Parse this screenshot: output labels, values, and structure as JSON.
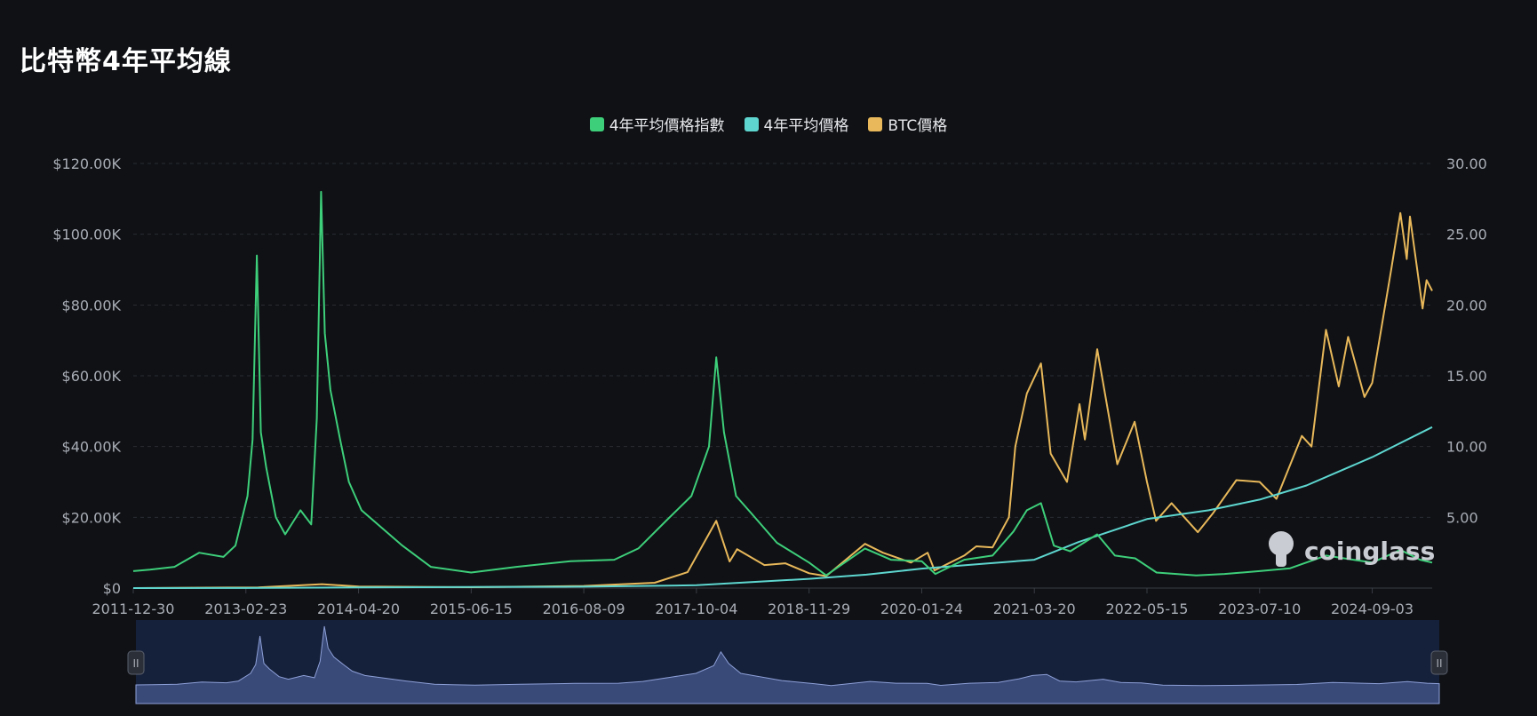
{
  "title": "比特幣4年平均線",
  "watermark": "coinglass",
  "colors": {
    "index": "#3ecf7a",
    "ma": "#5ed6cf",
    "btc": "#e8b85a",
    "grid": "#2a2d33",
    "navigator_fill": "#3a4a78",
    "navigator_bg": "#15203a"
  },
  "chart_data": {
    "type": "line",
    "title": "比特幣4年平均線",
    "x_ticks": [
      "2011-12-30",
      "2013-02-23",
      "2014-04-20",
      "2015-06-15",
      "2016-08-09",
      "2017-10-04",
      "2018-11-29",
      "2020-01-24",
      "2021-03-20",
      "2022-05-15",
      "2023-07-10",
      "2024-09-03"
    ],
    "x_range": [
      "2011-12-30",
      "2025-04-15"
    ],
    "y_left": {
      "ticks": [
        "$0",
        "$20.00K",
        "$40.00K",
        "$60.00K",
        "$80.00K",
        "$100.00K",
        "$120.00K"
      ],
      "range": [
        0,
        120000
      ]
    },
    "y_right": {
      "ticks": [
        "5.00",
        "10.00",
        "15.00",
        "20.00",
        "25.00",
        "30.00"
      ],
      "range": [
        0,
        30
      ]
    },
    "grid": true,
    "legend": "top-center",
    "series": [
      {
        "name": "4年平均價格指數",
        "axis": "right",
        "color_key": "index",
        "points": [
          [
            "2011-12-30",
            1.2
          ],
          [
            "2012-03-01",
            1.3
          ],
          [
            "2012-06-01",
            1.5
          ],
          [
            "2012-09-01",
            2.5
          ],
          [
            "2012-12-01",
            2.2
          ],
          [
            "2013-01-15",
            3.0
          ],
          [
            "2013-03-01",
            6.5
          ],
          [
            "2013-03-20",
            10.5
          ],
          [
            "2013-04-05",
            23.5
          ],
          [
            "2013-04-20",
            11.0
          ],
          [
            "2013-05-10",
            8.5
          ],
          [
            "2013-06-15",
            5.0
          ],
          [
            "2013-07-20",
            3.8
          ],
          [
            "2013-09-15",
            5.5
          ],
          [
            "2013-10-25",
            4.5
          ],
          [
            "2013-11-15",
            12.0
          ],
          [
            "2013-12-01",
            28.0
          ],
          [
            "2013-12-15",
            18.0
          ],
          [
            "2014-01-05",
            14.0
          ],
          [
            "2014-02-10",
            10.5
          ],
          [
            "2014-03-15",
            7.5
          ],
          [
            "2014-05-01",
            5.5
          ],
          [
            "2014-07-01",
            4.5
          ],
          [
            "2014-10-01",
            3.0
          ],
          [
            "2015-01-15",
            1.5
          ],
          [
            "2015-06-15",
            1.1
          ],
          [
            "2015-12-01",
            1.5
          ],
          [
            "2016-06-20",
            1.9
          ],
          [
            "2016-12-01",
            2.0
          ],
          [
            "2017-03-01",
            2.8
          ],
          [
            "2017-06-15",
            4.8
          ],
          [
            "2017-09-15",
            6.5
          ],
          [
            "2017-11-20",
            10.0
          ],
          [
            "2017-12-17",
            16.3
          ],
          [
            "2018-01-15",
            11.0
          ],
          [
            "2018-03-01",
            6.5
          ],
          [
            "2018-05-01",
            5.2
          ],
          [
            "2018-08-01",
            3.2
          ],
          [
            "2018-11-29",
            1.8
          ],
          [
            "2019-02-01",
            0.9
          ],
          [
            "2019-06-26",
            2.8
          ],
          [
            "2019-10-01",
            2.0
          ],
          [
            "2020-01-24",
            1.9
          ],
          [
            "2020-03-15",
            1.0
          ],
          [
            "2020-07-01",
            2.0
          ],
          [
            "2020-10-15",
            2.3
          ],
          [
            "2021-01-01",
            4.0
          ],
          [
            "2021-02-20",
            5.5
          ],
          [
            "2021-04-14",
            6.0
          ],
          [
            "2021-06-01",
            3.0
          ],
          [
            "2021-08-01",
            2.6
          ],
          [
            "2021-11-10",
            3.8
          ],
          [
            "2022-01-15",
            2.3
          ],
          [
            "2022-04-01",
            2.1
          ],
          [
            "2022-06-20",
            1.1
          ],
          [
            "2022-11-15",
            0.9
          ],
          [
            "2023-03-01",
            1.0
          ],
          [
            "2023-07-10",
            1.2
          ],
          [
            "2023-11-01",
            1.4
          ],
          [
            "2024-03-14",
            2.3
          ],
          [
            "2024-09-03",
            1.8
          ],
          [
            "2024-12-17",
            2.7
          ],
          [
            "2025-03-01",
            2.0
          ],
          [
            "2025-04-15",
            1.8
          ]
        ]
      },
      {
        "name": "4年平均價格",
        "axis": "left",
        "color_key": "ma",
        "points": [
          [
            "2011-12-30",
            0
          ],
          [
            "2013-02-23",
            20
          ],
          [
            "2014-04-20",
            200
          ],
          [
            "2015-06-15",
            300
          ],
          [
            "2016-08-09",
            400
          ],
          [
            "2017-10-04",
            800
          ],
          [
            "2018-11-29",
            2600
          ],
          [
            "2019-07-01",
            3800
          ],
          [
            "2020-01-24",
            5500
          ],
          [
            "2021-03-20",
            8000
          ],
          [
            "2021-09-01",
            13000
          ],
          [
            "2022-05-15",
            19500
          ],
          [
            "2023-01-01",
            22000
          ],
          [
            "2023-07-10",
            25000
          ],
          [
            "2024-01-01",
            29000
          ],
          [
            "2024-09-03",
            37000
          ],
          [
            "2025-04-15",
            45500
          ]
        ]
      },
      {
        "name": "BTC價格",
        "axis": "left",
        "color_key": "btc",
        "points": [
          [
            "2011-12-30",
            5
          ],
          [
            "2013-04-10",
            200
          ],
          [
            "2013-12-04",
            1100
          ],
          [
            "2014-04-20",
            450
          ],
          [
            "2015-06-15",
            250
          ],
          [
            "2016-08-09",
            600
          ],
          [
            "2017-05-01",
            1500
          ],
          [
            "2017-09-01",
            4500
          ],
          [
            "2017-12-17",
            19000
          ],
          [
            "2018-02-05",
            7500
          ],
          [
            "2018-03-05",
            11000
          ],
          [
            "2018-06-15",
            6500
          ],
          [
            "2018-09-01",
            7000
          ],
          [
            "2018-11-29",
            4200
          ],
          [
            "2019-02-01",
            3400
          ],
          [
            "2019-06-26",
            12500
          ],
          [
            "2019-09-01",
            10000
          ],
          [
            "2019-12-15",
            7200
          ],
          [
            "2020-02-15",
            10000
          ],
          [
            "2020-03-12",
            5000
          ],
          [
            "2020-07-01",
            9200
          ],
          [
            "2020-08-15",
            11800
          ],
          [
            "2020-10-15",
            11500
          ],
          [
            "2020-12-15",
            20000
          ],
          [
            "2021-01-08",
            40000
          ],
          [
            "2021-02-20",
            55000
          ],
          [
            "2021-04-14",
            63500
          ],
          [
            "2021-05-20",
            38000
          ],
          [
            "2021-07-20",
            30000
          ],
          [
            "2021-09-05",
            52000
          ],
          [
            "2021-09-25",
            42000
          ],
          [
            "2021-11-10",
            67500
          ],
          [
            "2022-01-24",
            35000
          ],
          [
            "2022-03-30",
            47000
          ],
          [
            "2022-05-15",
            30000
          ],
          [
            "2022-06-18",
            19000
          ],
          [
            "2022-08-15",
            24000
          ],
          [
            "2022-11-21",
            15800
          ],
          [
            "2023-01-15",
            21000
          ],
          [
            "2023-04-14",
            30500
          ],
          [
            "2023-07-10",
            30000
          ],
          [
            "2023-09-11",
            25200
          ],
          [
            "2023-12-15",
            43000
          ],
          [
            "2024-01-20",
            40000
          ],
          [
            "2024-03-14",
            73000
          ],
          [
            "2024-05-01",
            57000
          ],
          [
            "2024-06-05",
            71000
          ],
          [
            "2024-08-05",
            54000
          ],
          [
            "2024-09-03",
            58000
          ],
          [
            "2024-11-13",
            90000
          ],
          [
            "2024-12-17",
            106000
          ],
          [
            "2025-01-10",
            93000
          ],
          [
            "2025-01-22",
            105000
          ],
          [
            "2025-03-10",
            79000
          ],
          [
            "2025-03-25",
            87000
          ],
          [
            "2025-04-15",
            84000
          ]
        ]
      }
    ]
  },
  "navigator": {
    "left_handle": "II",
    "right_handle": "II"
  }
}
